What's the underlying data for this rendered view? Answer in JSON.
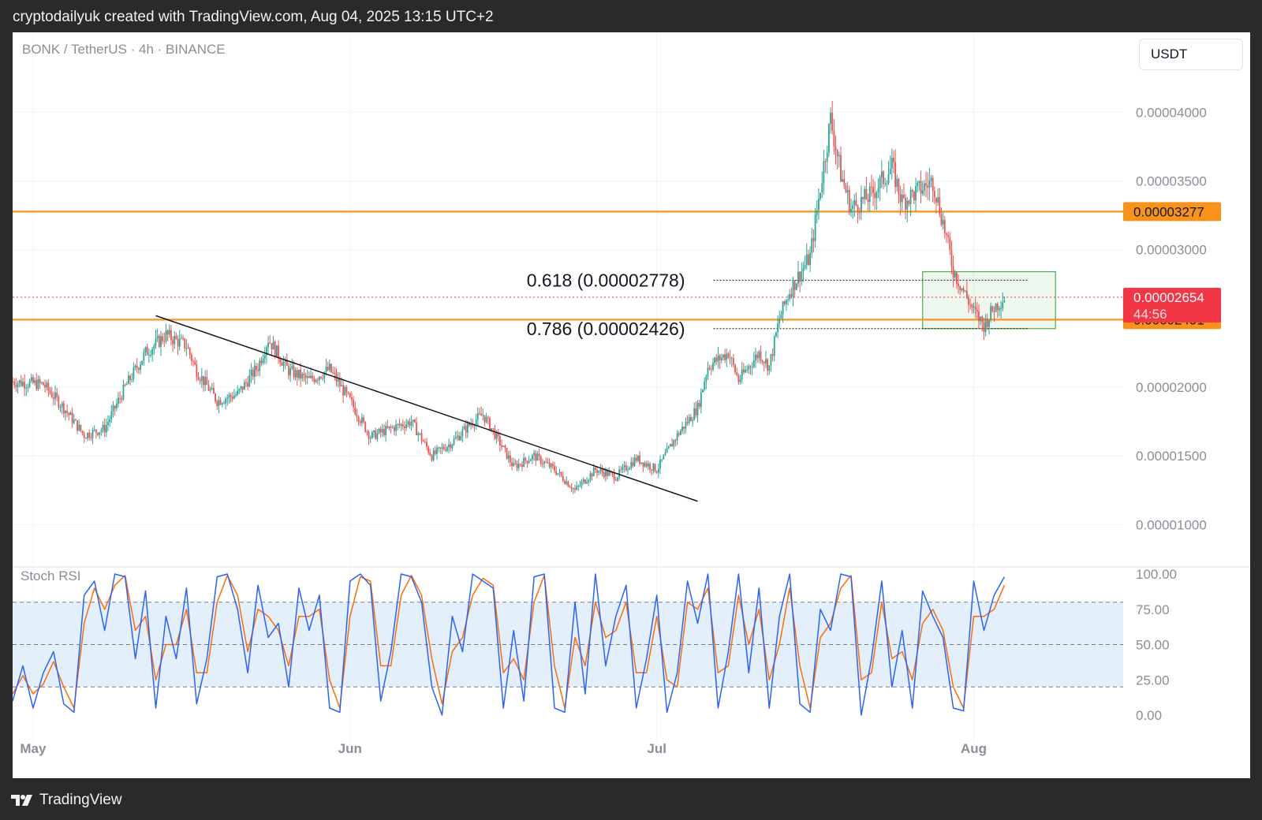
{
  "header": {
    "credit": "cryptodailyuk created with TradingView.com, Aug 04, 2025 13:15 UTC+2"
  },
  "chart_header": {
    "symbol": "BONK / TetherUS · 4h · BINANCE",
    "currency": "USDT"
  },
  "footer": {
    "brand": "TradingView",
    "logo_icon": "tradingview-logo-icon"
  },
  "colors": {
    "up": "#26a69a",
    "down": "#ef5350",
    "orange": "#f7931a",
    "current_price": "#f23645",
    "stoch_k": "#2962ff",
    "stoch_d": "#ff6d00",
    "stoch_band": "#e3effb",
    "zone": "#4caf50"
  },
  "chart_data": [
    {
      "type": "candlestick",
      "title": "BONK / TetherUS · 4h · BINANCE",
      "ylim": [
        7.5e-06,
        4.34e-05
      ],
      "y_ticks": [
        1e-05,
        1.5e-05,
        2e-05,
        2.5e-05,
        3e-05,
        3.5e-05,
        4e-05
      ],
      "y_tick_labels": [
        "0.00001000",
        "0.00001500",
        "0.00002000",
        "0.00002500",
        "0.00003000",
        "0.00003500",
        "0.00004000"
      ],
      "x_labels": [
        {
          "label": "May",
          "date": "2025-05-01"
        },
        {
          "label": "Jun",
          "date": "2025-06-01"
        },
        {
          "label": "Jul",
          "date": "2025-07-01"
        },
        {
          "label": "Aug",
          "date": "2025-08-01"
        }
      ],
      "x_range_dates": [
        "2025-04-29",
        "2025-08-15"
      ],
      "price_path": [
        [
          "2025-04-29",
          2.04e-05
        ],
        [
          "2025-05-02",
          2.02e-05
        ],
        [
          "2025-05-04",
          1.85e-05
        ],
        [
          "2025-05-06",
          1.65e-05
        ],
        [
          "2025-05-08",
          1.7e-05
        ],
        [
          "2025-05-10",
          2e-05
        ],
        [
          "2025-05-12",
          2.25e-05
        ],
        [
          "2025-05-14",
          2.38e-05
        ],
        [
          "2025-05-16",
          2.3e-05
        ],
        [
          "2025-05-17",
          2.12e-05
        ],
        [
          "2025-05-19",
          1.9e-05
        ],
        [
          "2025-05-21",
          1.95e-05
        ],
        [
          "2025-05-23",
          2.15e-05
        ],
        [
          "2025-05-24",
          2.35e-05
        ],
        [
          "2025-05-26",
          2.12e-05
        ],
        [
          "2025-05-28",
          2.05e-05
        ],
        [
          "2025-05-30",
          2.13e-05
        ],
        [
          "2025-06-01",
          1.9e-05
        ],
        [
          "2025-06-03",
          1.64e-05
        ],
        [
          "2025-06-05",
          1.7e-05
        ],
        [
          "2025-06-07",
          1.75e-05
        ],
        [
          "2025-06-09",
          1.5e-05
        ],
        [
          "2025-06-11",
          1.6e-05
        ],
        [
          "2025-06-13",
          1.75e-05
        ],
        [
          "2025-06-14",
          1.8e-05
        ],
        [
          "2025-06-15",
          1.68e-05
        ],
        [
          "2025-06-17",
          1.42e-05
        ],
        [
          "2025-06-19",
          1.5e-05
        ],
        [
          "2025-06-21",
          1.4e-05
        ],
        [
          "2025-06-23",
          1.25e-05
        ],
        [
          "2025-06-25",
          1.4e-05
        ],
        [
          "2025-06-27",
          1.35e-05
        ],
        [
          "2025-06-29",
          1.48e-05
        ],
        [
          "2025-07-01",
          1.4e-05
        ],
        [
          "2025-07-03",
          1.65e-05
        ],
        [
          "2025-07-05",
          1.85e-05
        ],
        [
          "2025-07-06",
          2.15e-05
        ],
        [
          "2025-07-08",
          2.25e-05
        ],
        [
          "2025-07-09",
          2.05e-05
        ],
        [
          "2025-07-11",
          2.25e-05
        ],
        [
          "2025-07-12",
          2.15e-05
        ],
        [
          "2025-07-13",
          2.5e-05
        ],
        [
          "2025-07-14",
          2.7e-05
        ],
        [
          "2025-07-16",
          2.95e-05
        ],
        [
          "2025-07-17",
          3.45e-05
        ],
        [
          "2025-07-18",
          3.95e-05
        ],
        [
          "2025-07-19",
          3.55e-05
        ],
        [
          "2025-07-20",
          3.3e-05
        ],
        [
          "2025-07-22",
          3.4e-05
        ],
        [
          "2025-07-24",
          3.6e-05
        ],
        [
          "2025-07-25",
          3.35e-05
        ],
        [
          "2025-07-27",
          3.45e-05
        ],
        [
          "2025-07-28",
          3.5e-05
        ],
        [
          "2025-07-29",
          3.2e-05
        ],
        [
          "2025-07-30",
          2.85e-05
        ],
        [
          "2025-07-31",
          2.7e-05
        ],
        [
          "2025-08-01",
          2.55e-05
        ],
        [
          "2025-08-02",
          2.45e-05
        ],
        [
          "2025-08-03",
          2.58e-05
        ],
        [
          "2025-08-04",
          2.654e-05
        ]
      ],
      "current_price": {
        "value": 2.654e-05,
        "label": "0.00002654",
        "countdown": "44:56"
      },
      "horizontal_levels": [
        {
          "value": 3.277e-05,
          "label": "0.00003277"
        },
        {
          "value": 2.491e-05,
          "label": "0.00002491"
        }
      ],
      "fib_levels": [
        {
          "ratio": 0.618,
          "value": 2.778e-05,
          "label": "0.618 (0.00002778)"
        },
        {
          "ratio": 0.786,
          "value": 2.426e-05,
          "label": "0.786 (0.00002426)"
        }
      ],
      "trendline": [
        [
          "2025-05-13",
          2.52e-05
        ],
        [
          "2025-07-05",
          1.17e-05
        ]
      ],
      "zone": {
        "x": [
          "2025-07-27",
          "2025-08-09"
        ],
        "y": [
          2.426e-05,
          2.84e-05
        ]
      }
    },
    {
      "type": "line",
      "title": "Stoch RSI",
      "ylim": [
        0,
        100
      ],
      "y_ticks": [
        0,
        25,
        50,
        75,
        100
      ],
      "y_tick_labels": [
        "0.00",
        "25.00",
        "50.00",
        "75.00",
        "100.00"
      ],
      "band": [
        20,
        80
      ],
      "series": [
        {
          "color": "#2962ff",
          "x": [
            "2025-04-29",
            "2025-04-30",
            "2025-05-01",
            "2025-05-02",
            "2025-05-03",
            "2025-05-04",
            "2025-05-05",
            "2025-05-06",
            "2025-05-07",
            "2025-05-08",
            "2025-05-09",
            "2025-05-10",
            "2025-05-11",
            "2025-05-12",
            "2025-05-13",
            "2025-05-14",
            "2025-05-15",
            "2025-05-16",
            "2025-05-17",
            "2025-05-18",
            "2025-05-19",
            "2025-05-20",
            "2025-05-21",
            "2025-05-22",
            "2025-05-23",
            "2025-05-24",
            "2025-05-25",
            "2025-05-26",
            "2025-05-27",
            "2025-05-28",
            "2025-05-29",
            "2025-05-30",
            "2025-05-31",
            "2025-06-01",
            "2025-06-02",
            "2025-06-03",
            "2025-06-04",
            "2025-06-05",
            "2025-06-06",
            "2025-06-07",
            "2025-06-08",
            "2025-06-09",
            "2025-06-10",
            "2025-06-11",
            "2025-06-12",
            "2025-06-13",
            "2025-06-14",
            "2025-06-15",
            "2025-06-16",
            "2025-06-17",
            "2025-06-18",
            "2025-06-19",
            "2025-06-20",
            "2025-06-21",
            "2025-06-22",
            "2025-06-23",
            "2025-06-24",
            "2025-06-25",
            "2025-06-26",
            "2025-06-27",
            "2025-06-28",
            "2025-06-29",
            "2025-06-30",
            "2025-07-01",
            "2025-07-02",
            "2025-07-03",
            "2025-07-04",
            "2025-07-05",
            "2025-07-06",
            "2025-07-07",
            "2025-07-08",
            "2025-07-09",
            "2025-07-10",
            "2025-07-11",
            "2025-07-12",
            "2025-07-13",
            "2025-07-14",
            "2025-07-15",
            "2025-07-16",
            "2025-07-17",
            "2025-07-18",
            "2025-07-19",
            "2025-07-20",
            "2025-07-21",
            "2025-07-22",
            "2025-07-23",
            "2025-07-24",
            "2025-07-25",
            "2025-07-26",
            "2025-07-27",
            "2025-07-28",
            "2025-07-29",
            "2025-07-30",
            "2025-07-31",
            "2025-08-01",
            "2025-08-02",
            "2025-08-03",
            "2025-08-04"
          ],
          "values": [
            10,
            35,
            5,
            30,
            45,
            8,
            2,
            85,
            95,
            60,
            100,
            98,
            40,
            88,
            5,
            70,
            40,
            90,
            8,
            40,
            98,
            100,
            75,
            30,
            92,
            55,
            65,
            20,
            90,
            60,
            85,
            5,
            2,
            95,
            100,
            92,
            10,
            45,
            100,
            98,
            80,
            20,
            0,
            70,
            45,
            100,
            95,
            90,
            5,
            60,
            10,
            98,
            100,
            5,
            2,
            80,
            15,
            100,
            35,
            70,
            92,
            5,
            40,
            85,
            2,
            30,
            95,
            65,
            100,
            5,
            45,
            100,
            30,
            90,
            5,
            70,
            100,
            8,
            2,
            75,
            60,
            100,
            98,
            0,
            40,
            95,
            20,
            60,
            5,
            88,
            70,
            55,
            5,
            3,
            95,
            60,
            85,
            98
          ]
        },
        {
          "color": "#ff6d00",
          "x": [
            "2025-04-29",
            "2025-04-30",
            "2025-05-01",
            "2025-05-02",
            "2025-05-03",
            "2025-05-04",
            "2025-05-05",
            "2025-05-06",
            "2025-05-07",
            "2025-05-08",
            "2025-05-09",
            "2025-05-10",
            "2025-05-11",
            "2025-05-12",
            "2025-05-13",
            "2025-05-14",
            "2025-05-15",
            "2025-05-16",
            "2025-05-17",
            "2025-05-18",
            "2025-05-19",
            "2025-05-20",
            "2025-05-21",
            "2025-05-22",
            "2025-05-23",
            "2025-05-24",
            "2025-05-25",
            "2025-05-26",
            "2025-05-27",
            "2025-05-28",
            "2025-05-29",
            "2025-05-30",
            "2025-05-31",
            "2025-06-01",
            "2025-06-02",
            "2025-06-03",
            "2025-06-04",
            "2025-06-05",
            "2025-06-06",
            "2025-06-07",
            "2025-06-08",
            "2025-06-09",
            "2025-06-10",
            "2025-06-11",
            "2025-06-12",
            "2025-06-13",
            "2025-06-14",
            "2025-06-15",
            "2025-06-16",
            "2025-06-17",
            "2025-06-18",
            "2025-06-19",
            "2025-06-20",
            "2025-06-21",
            "2025-06-22",
            "2025-06-23",
            "2025-06-24",
            "2025-06-25",
            "2025-06-26",
            "2025-06-27",
            "2025-06-28",
            "2025-06-29",
            "2025-06-30",
            "2025-07-01",
            "2025-07-02",
            "2025-07-03",
            "2025-07-04",
            "2025-07-05",
            "2025-07-06",
            "2025-07-07",
            "2025-07-08",
            "2025-07-09",
            "2025-07-10",
            "2025-07-11",
            "2025-07-12",
            "2025-07-13",
            "2025-07-14",
            "2025-07-15",
            "2025-07-16",
            "2025-07-17",
            "2025-07-18",
            "2025-07-19",
            "2025-07-20",
            "2025-07-21",
            "2025-07-22",
            "2025-07-23",
            "2025-07-24",
            "2025-07-25",
            "2025-07-26",
            "2025-07-27",
            "2025-07-28",
            "2025-07-29",
            "2025-07-30",
            "2025-07-31",
            "2025-08-01",
            "2025-08-02",
            "2025-08-03",
            "2025-08-04"
          ],
          "values": [
            15,
            28,
            15,
            22,
            38,
            20,
            5,
            65,
            90,
            75,
            92,
            99,
            60,
            70,
            25,
            50,
            50,
            75,
            30,
            30,
            80,
            99,
            85,
            45,
            75,
            70,
            60,
            35,
            70,
            70,
            75,
            25,
            5,
            70,
            98,
            95,
            35,
            35,
            85,
            99,
            85,
            40,
            8,
            45,
            55,
            85,
            97,
            92,
            30,
            40,
            25,
            80,
            99,
            35,
            5,
            55,
            35,
            80,
            55,
            60,
            80,
            30,
            30,
            70,
            25,
            20,
            80,
            75,
            90,
            30,
            35,
            85,
            50,
            75,
            25,
            50,
            90,
            35,
            5,
            55,
            65,
            90,
            99,
            25,
            30,
            80,
            40,
            45,
            25,
            65,
            75,
            60,
            20,
            5,
            70,
            70,
            75,
            92
          ]
        }
      ]
    }
  ]
}
